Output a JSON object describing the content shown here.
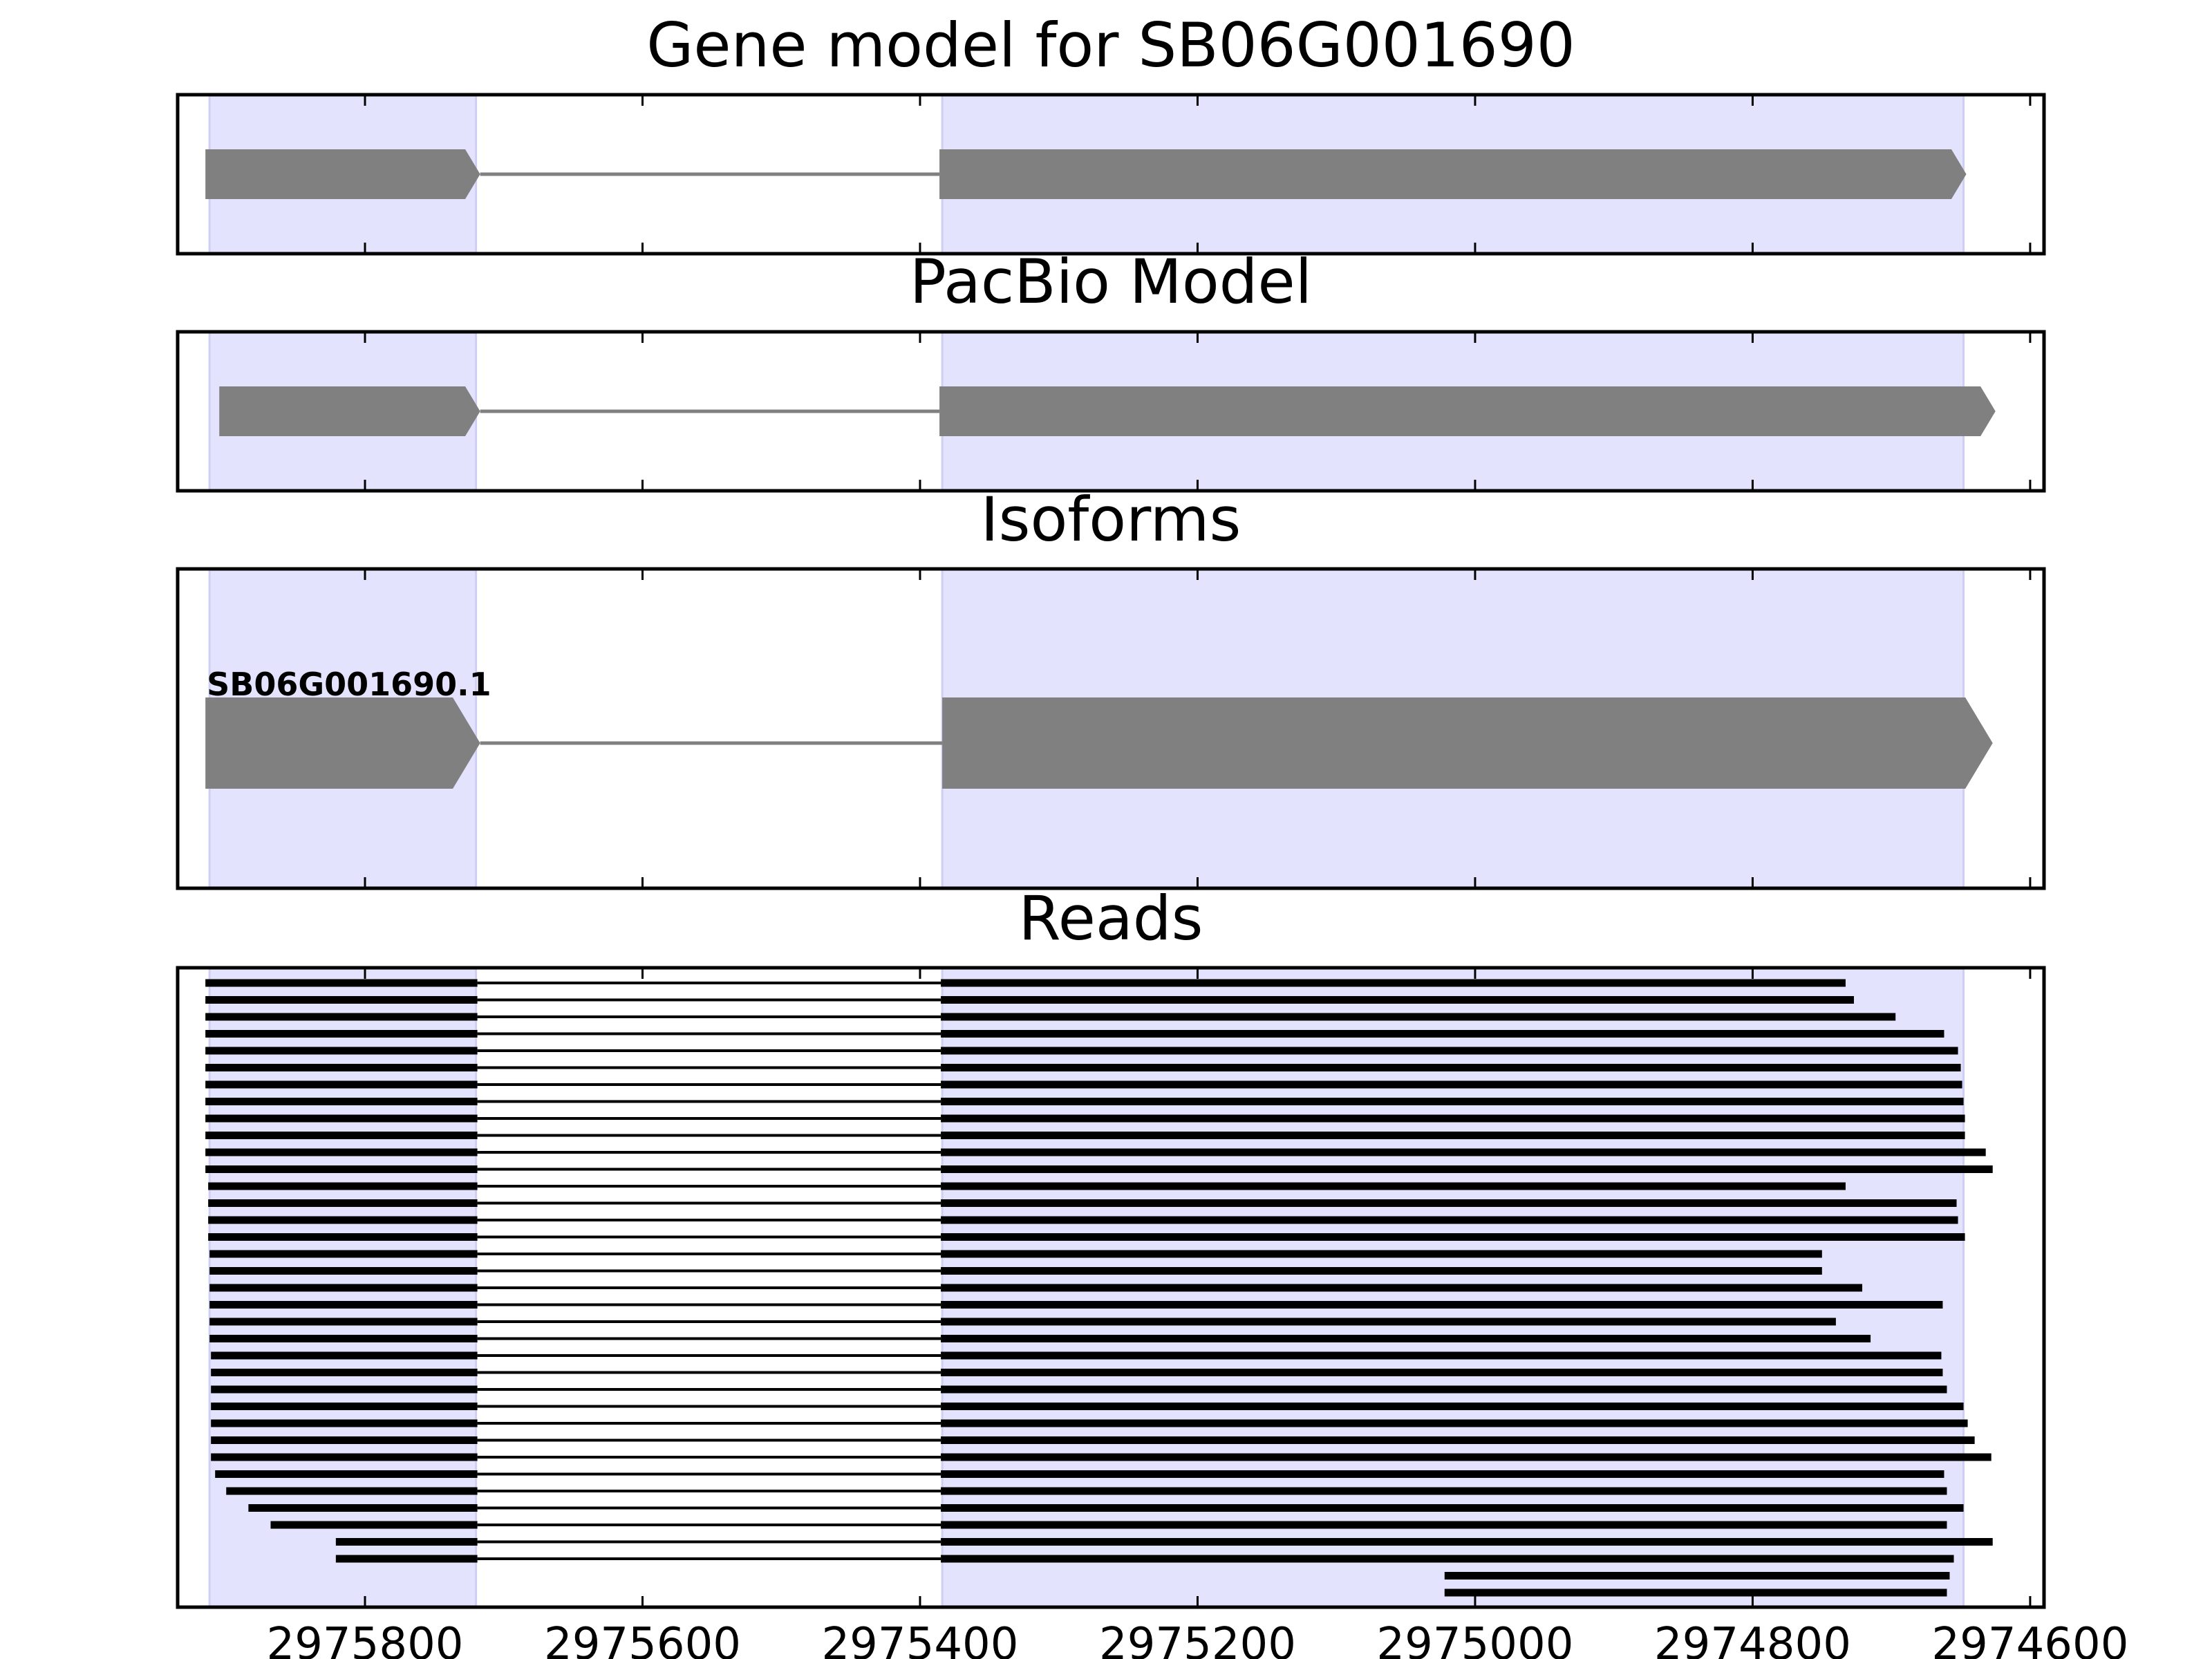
{
  "chart_data": {
    "type": "gene_structure",
    "x_axis": {
      "reversed": true,
      "xlim": [
        2975935,
        2974590
      ],
      "ticks": [
        2975800,
        2975600,
        2975400,
        2975200,
        2975000,
        2974800,
        2974600
      ],
      "tick_labels": [
        "2975800",
        "2975600",
        "2975400",
        "2975200",
        "2975000",
        "2974800",
        "2974600"
      ]
    },
    "shaded_exons": [
      [
        2975912,
        2975720
      ],
      [
        2975384,
        2974648
      ]
    ],
    "colors": {
      "exon": "#808080",
      "intron": "#808080",
      "shade": "#e3e3fe",
      "read": "#000000"
    },
    "panels": [
      {
        "id": "gene_model",
        "title": "Gene model for SB06G001690",
        "models": [
          {
            "label": "",
            "exons": [
              [
                2975915,
                2975717
              ],
              [
                2975386,
                2974646
              ]
            ]
          }
        ]
      },
      {
        "id": "pacbio",
        "title": "PacBio Model",
        "models": [
          {
            "label": "",
            "exons": [
              [
                2975905,
                2975717
              ],
              [
                2975386,
                2974625
              ]
            ]
          }
        ]
      },
      {
        "id": "isoforms",
        "title": "Isoforms",
        "models": [
          {
            "label": "SB06G001690.1",
            "exons": [
              [
                2975915,
                2975717
              ],
              [
                2975384,
                2974627
              ]
            ]
          }
        ]
      },
      {
        "id": "reads",
        "title": "Reads",
        "reads": [
          [
            2975915,
            2974733
          ],
          [
            2975915,
            2974727
          ],
          [
            2975915,
            2974697
          ],
          [
            2975915,
            2974662
          ],
          [
            2975915,
            2974652
          ],
          [
            2975915,
            2974650
          ],
          [
            2975915,
            2974649
          ],
          [
            2975915,
            2974648
          ],
          [
            2975915,
            2974647
          ],
          [
            2975915,
            2974647
          ],
          [
            2975915,
            2974632
          ],
          [
            2975915,
            2974627
          ],
          [
            2975913,
            2974733
          ],
          [
            2975913,
            2974653
          ],
          [
            2975913,
            2974652
          ],
          [
            2975913,
            2974647
          ],
          [
            2975912,
            2974750
          ],
          [
            2975912,
            2974750
          ],
          [
            2975912,
            2974721
          ],
          [
            2975912,
            2974663
          ],
          [
            2975912,
            2974740
          ],
          [
            2975912,
            2974715
          ],
          [
            2975911,
            2974664
          ],
          [
            2975911,
            2974663
          ],
          [
            2975911,
            2974660
          ],
          [
            2975911,
            2974648
          ],
          [
            2975911,
            2974645
          ],
          [
            2975911,
            2974640
          ],
          [
            2975911,
            2974628
          ],
          [
            2975908,
            2974662
          ],
          [
            2975900,
            2974660
          ],
          [
            2975884,
            2974648
          ],
          [
            2975868,
            2974660
          ],
          [
            2975821,
            2974627
          ],
          [
            2975821,
            2974655
          ],
          [
            2975022,
            2974658
          ],
          [
            2975022,
            2974660
          ]
        ]
      }
    ]
  }
}
